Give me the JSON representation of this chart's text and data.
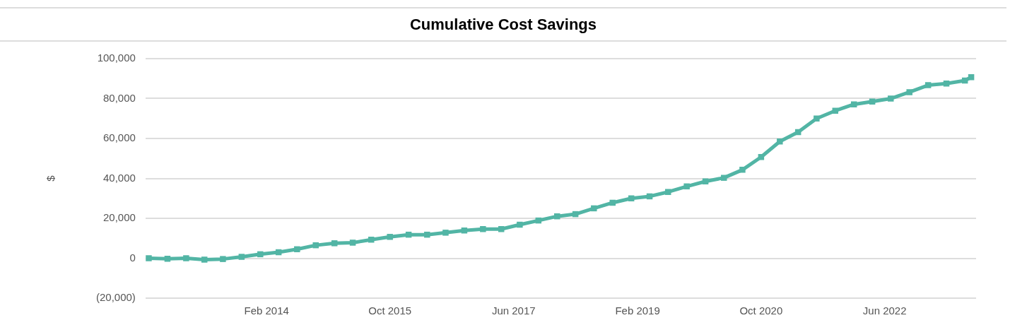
{
  "chart_data": {
    "type": "line",
    "title": "Cumulative Cost Savings",
    "ylabel": "$",
    "x": [
      "2012-07",
      "2012-10",
      "2013-01",
      "2013-04",
      "2013-07",
      "2013-10",
      "2014-01",
      "2014-04",
      "2014-07",
      "2014-10",
      "2015-01",
      "2015-04",
      "2015-07",
      "2015-10",
      "2016-01",
      "2016-04",
      "2016-07",
      "2016-10",
      "2017-01",
      "2017-04",
      "2017-07",
      "2017-10",
      "2018-01",
      "2018-04",
      "2018-07",
      "2018-10",
      "2019-01",
      "2019-04",
      "2019-07",
      "2019-10",
      "2020-01",
      "2020-04",
      "2020-07",
      "2020-10",
      "2021-01",
      "2021-04",
      "2021-07",
      "2021-10",
      "2022-01",
      "2022-04",
      "2022-07",
      "2022-10",
      "2023-01",
      "2023-04",
      "2023-07",
      "2023-08"
    ],
    "series": [
      {
        "color": "#52b5a5",
        "values": [
          0,
          -300,
          0,
          -700,
          -400,
          700,
          2000,
          3000,
          4500,
          6500,
          7500,
          7800,
          9300,
          10700,
          11800,
          11800,
          12800,
          13900,
          14600,
          14600,
          16800,
          18900,
          21000,
          22100,
          25000,
          27800,
          30000,
          31000,
          33200,
          36000,
          38500,
          40300,
          44300,
          50700,
          58500,
          63200,
          70000,
          73900,
          77100,
          78500,
          80000,
          83200,
          86700,
          87500,
          89000,
          90700
        ]
      }
    ],
    "xlim": [
      "2012-06-15",
      "2023-08-25"
    ],
    "xticks": [
      {
        "value": "2014-02",
        "label": "Feb 2014"
      },
      {
        "value": "2015-10",
        "label": "Oct 2015"
      },
      {
        "value": "2017-06",
        "label": "Jun 2017"
      },
      {
        "value": "2019-02",
        "label": "Feb 2019"
      },
      {
        "value": "2020-10",
        "label": "Oct 2020"
      },
      {
        "value": "2022-06",
        "label": "Jun 2022"
      }
    ],
    "ylim": [
      -20000,
      100000
    ],
    "yticks": [
      {
        "value": -20000,
        "label": "(20,000)"
      },
      {
        "value": 0,
        "label": "0"
      },
      {
        "value": 20000,
        "label": "20,000"
      },
      {
        "value": 40000,
        "label": "40,000"
      },
      {
        "value": 60000,
        "label": "60,000"
      },
      {
        "value": 80000,
        "label": "80,000"
      },
      {
        "value": 100000,
        "label": "100,000"
      }
    ],
    "grid": "y",
    "legend": false,
    "marker": "square",
    "line_style": "solid"
  }
}
